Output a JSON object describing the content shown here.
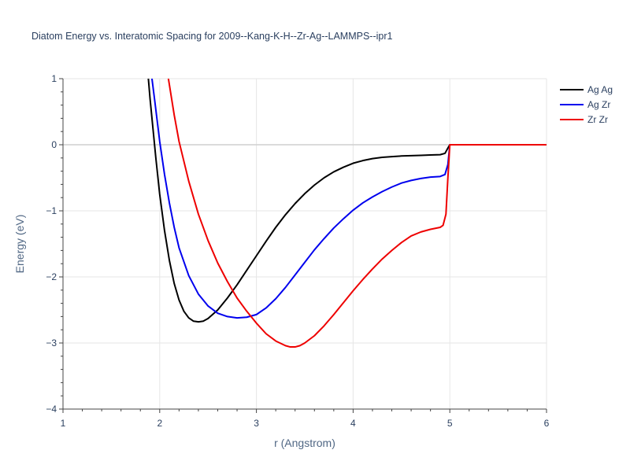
{
  "chart_data": {
    "type": "line",
    "title": "Diatom Energy vs. Interatomic Spacing for 2009--Kang-K-H--Zr-Ag--LAMMPS--ipr1",
    "xlabel": "r (Angstrom)",
    "ylabel": "Energy (eV)",
    "xlim": [
      1,
      6
    ],
    "ylim": [
      -4,
      1
    ],
    "xticks": [
      1,
      2,
      3,
      4,
      5,
      6
    ],
    "yticks": [
      -4,
      -3,
      -2,
      -1,
      0,
      1
    ],
    "grid": true,
    "legend_position": "top-right",
    "series": [
      {
        "name": "Ag Ag",
        "color": "#000000",
        "x": [
          1.88,
          1.9,
          1.93,
          1.96,
          2.0,
          2.05,
          2.1,
          2.15,
          2.2,
          2.25,
          2.3,
          2.35,
          2.4,
          2.45,
          2.5,
          2.6,
          2.7,
          2.8,
          2.9,
          3.0,
          3.1,
          3.2,
          3.3,
          3.4,
          3.5,
          3.6,
          3.7,
          3.8,
          3.9,
          4.0,
          4.1,
          4.2,
          4.3,
          4.4,
          4.5,
          4.6,
          4.7,
          4.8,
          4.9,
          4.95,
          4.98,
          5.0,
          5.5,
          6.0
        ],
        "y": [
          1.05,
          0.7,
          0.25,
          -0.2,
          -0.75,
          -1.3,
          -1.75,
          -2.1,
          -2.35,
          -2.52,
          -2.62,
          -2.67,
          -2.68,
          -2.67,
          -2.63,
          -2.5,
          -2.32,
          -2.12,
          -1.9,
          -1.68,
          -1.46,
          -1.25,
          -1.06,
          -0.89,
          -0.74,
          -0.61,
          -0.5,
          -0.41,
          -0.34,
          -0.28,
          -0.24,
          -0.21,
          -0.19,
          -0.18,
          -0.17,
          -0.165,
          -0.16,
          -0.155,
          -0.15,
          -0.13,
          -0.05,
          0.0,
          0.0,
          0.0
        ]
      },
      {
        "name": "Ag Zr",
        "color": "#0000ee",
        "x": [
          1.92,
          1.95,
          2.0,
          2.05,
          2.1,
          2.15,
          2.2,
          2.3,
          2.4,
          2.5,
          2.6,
          2.7,
          2.8,
          2.9,
          3.0,
          3.1,
          3.2,
          3.3,
          3.4,
          3.5,
          3.6,
          3.7,
          3.8,
          3.9,
          4.0,
          4.1,
          4.2,
          4.3,
          4.4,
          4.5,
          4.6,
          4.7,
          4.8,
          4.9,
          4.95,
          4.98,
          5.0,
          5.5,
          6.0
        ],
        "y": [
          1.0,
          0.65,
          0.05,
          -0.45,
          -0.88,
          -1.25,
          -1.56,
          -1.98,
          -2.26,
          -2.44,
          -2.55,
          -2.6,
          -2.62,
          -2.61,
          -2.57,
          -2.47,
          -2.33,
          -2.16,
          -1.97,
          -1.78,
          -1.59,
          -1.42,
          -1.26,
          -1.12,
          -0.99,
          -0.88,
          -0.79,
          -0.71,
          -0.64,
          -0.58,
          -0.54,
          -0.51,
          -0.49,
          -0.48,
          -0.45,
          -0.3,
          0.0,
          0.0,
          0.0
        ]
      },
      {
        "name": "Zr Zr",
        "color": "#ee0000",
        "x": [
          2.09,
          2.15,
          2.2,
          2.3,
          2.4,
          2.5,
          2.6,
          2.7,
          2.8,
          2.9,
          3.0,
          3.1,
          3.2,
          3.3,
          3.35,
          3.4,
          3.45,
          3.5,
          3.6,
          3.7,
          3.8,
          3.9,
          4.0,
          4.1,
          4.2,
          4.3,
          4.4,
          4.5,
          4.6,
          4.7,
          4.8,
          4.9,
          4.93,
          4.96,
          4.98,
          5.0,
          5.5,
          6.0
        ],
        "y": [
          1.0,
          0.45,
          0.05,
          -0.55,
          -1.05,
          -1.45,
          -1.79,
          -2.07,
          -2.32,
          -2.52,
          -2.7,
          -2.86,
          -2.97,
          -3.04,
          -3.06,
          -3.06,
          -3.04,
          -3.0,
          -2.89,
          -2.74,
          -2.57,
          -2.39,
          -2.21,
          -2.04,
          -1.88,
          -1.73,
          -1.6,
          -1.48,
          -1.38,
          -1.32,
          -1.28,
          -1.25,
          -1.22,
          -1.05,
          -0.5,
          0.0,
          0.0,
          0.0
        ]
      }
    ]
  }
}
